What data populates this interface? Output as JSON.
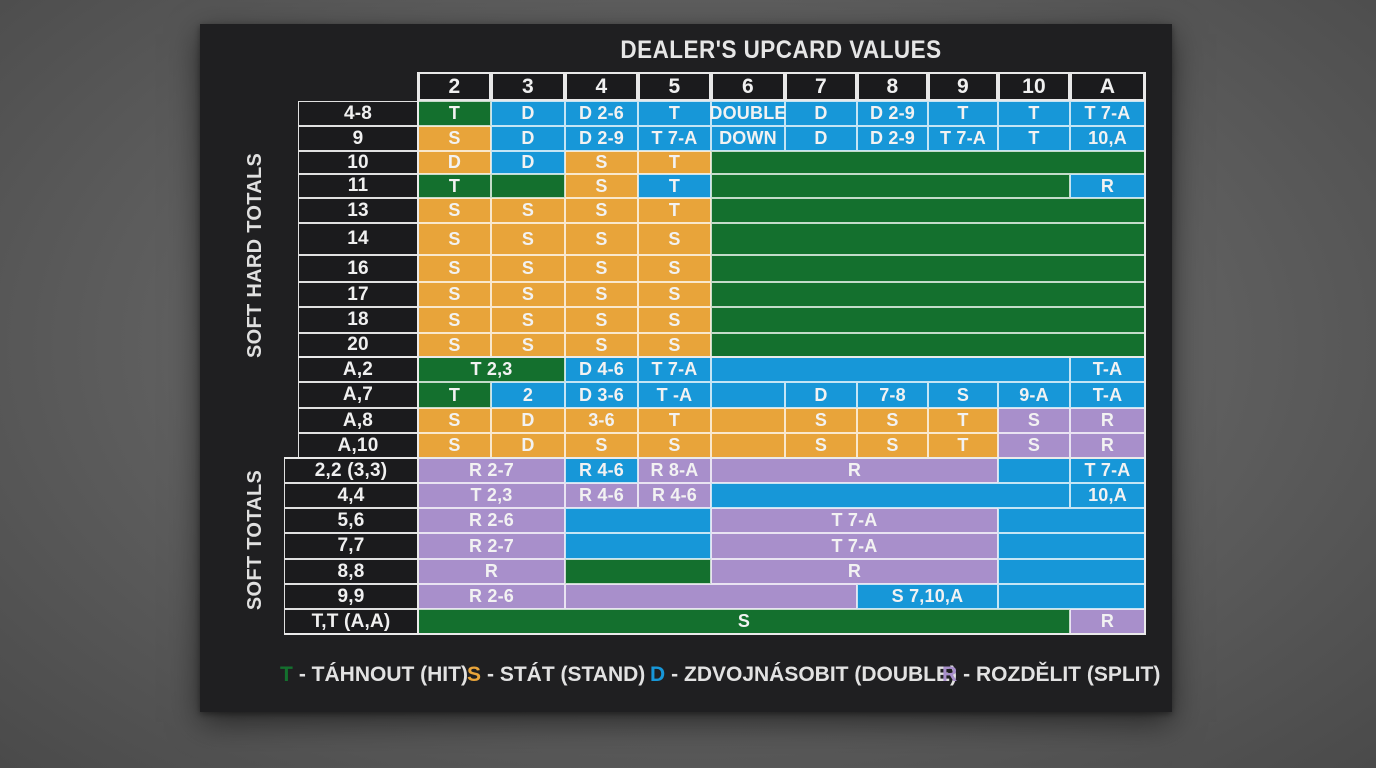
{
  "title": "DEALER'S UPCARD VALUES",
  "side_labels": {
    "upper": "SOFT HARD TOTALS",
    "lower": "SOFT TOTALS"
  },
  "colors": {
    "T": "#14702e",
    "S": "#e8a43a",
    "D": "#1797d8",
    "R": "#a88fcb",
    "board": "#1f1f21"
  },
  "columns": [
    "2",
    "3",
    "4",
    "5",
    "6",
    "7",
    "8",
    "9",
    "10",
    "A"
  ],
  "sections": [
    {
      "name": "hard",
      "rows": [
        {
          "label": "4-8",
          "cells": [
            {
              "span": 1,
              "color": "G",
              "text": "T"
            },
            {
              "span": 1,
              "color": "B",
              "text": "D"
            },
            {
              "span": 1,
              "color": "B",
              "text": "D 2-6"
            },
            {
              "span": 1,
              "color": "B",
              "text": "T"
            },
            {
              "span": 1,
              "color": "B",
              "text": "DOUBLE"
            },
            {
              "span": 1,
              "color": "B",
              "text": "D"
            },
            {
              "span": 1,
              "color": "B",
              "text": "D 2-9"
            },
            {
              "span": 1,
              "color": "B",
              "text": "T"
            },
            {
              "span": 1,
              "color": "B",
              "text": "T"
            },
            {
              "span": 1,
              "color": "B",
              "text": "T 7-A"
            }
          ]
        },
        {
          "label": "9",
          "cells": [
            {
              "span": 1,
              "color": "O",
              "text": "S"
            },
            {
              "span": 1,
              "color": "B",
              "text": "D"
            },
            {
              "span": 1,
              "color": "B",
              "text": "D 2-9"
            },
            {
              "span": 1,
              "color": "B",
              "text": "T 7-A"
            },
            {
              "span": 1,
              "color": "B",
              "text": "DOWN"
            },
            {
              "span": 1,
              "color": "B",
              "text": "D"
            },
            {
              "span": 1,
              "color": "B",
              "text": "D 2-9"
            },
            {
              "span": 1,
              "color": "B",
              "text": "T 7-A"
            },
            {
              "span": 1,
              "color": "B",
              "text": "T"
            },
            {
              "span": 1,
              "color": "B",
              "text": "10,A"
            }
          ]
        },
        {
          "label": "10",
          "cells": [
            {
              "span": 1,
              "color": "O",
              "text": "D"
            },
            {
              "span": 1,
              "color": "B",
              "text": "D"
            },
            {
              "span": 1,
              "color": "O",
              "text": "S"
            },
            {
              "span": 1,
              "color": "O",
              "text": "T"
            },
            {
              "span": 6,
              "color": "G",
              "text": ""
            }
          ]
        },
        {
          "label": "11",
          "cells": [
            {
              "span": 1,
              "color": "G",
              "text": "T"
            },
            {
              "span": 1,
              "color": "G",
              "text": ""
            },
            {
              "span": 1,
              "color": "O",
              "text": "S"
            },
            {
              "span": 1,
              "color": "B",
              "text": "T"
            },
            {
              "span": 5,
              "color": "G",
              "text": ""
            },
            {
              "span": 1,
              "color": "B",
              "text": "R"
            }
          ]
        },
        {
          "label": "13",
          "cells": [
            {
              "span": 1,
              "color": "O",
              "text": "S"
            },
            {
              "span": 1,
              "color": "O",
              "text": "S"
            },
            {
              "span": 1,
              "color": "O",
              "text": "S"
            },
            {
              "span": 1,
              "color": "O",
              "text": "T"
            },
            {
              "span": 6,
              "color": "G",
              "text": ""
            }
          ]
        },
        {
          "label": "14",
          "cells": [
            {
              "span": 1,
              "color": "O",
              "text": "S"
            },
            {
              "span": 1,
              "color": "O",
              "text": "S"
            },
            {
              "span": 1,
              "color": "O",
              "text": "S"
            },
            {
              "span": 1,
              "color": "O",
              "text": "S"
            },
            {
              "span": 6,
              "color": "G",
              "text": ""
            }
          ]
        },
        {
          "label": "16",
          "cells": [
            {
              "span": 1,
              "color": "O",
              "text": "S"
            },
            {
              "span": 1,
              "color": "O",
              "text": "S"
            },
            {
              "span": 1,
              "color": "O",
              "text": "S"
            },
            {
              "span": 1,
              "color": "O",
              "text": "S"
            },
            {
              "span": 6,
              "color": "G",
              "text": ""
            }
          ]
        },
        {
          "label": "17",
          "cells": [
            {
              "span": 1,
              "color": "O",
              "text": "S"
            },
            {
              "span": 1,
              "color": "O",
              "text": "S"
            },
            {
              "span": 1,
              "color": "O",
              "text": "S"
            },
            {
              "span": 1,
              "color": "O",
              "text": "S"
            },
            {
              "span": 6,
              "color": "G",
              "text": ""
            }
          ]
        },
        {
          "label": "18",
          "cells": [
            {
              "span": 1,
              "color": "O",
              "text": "S"
            },
            {
              "span": 1,
              "color": "O",
              "text": "S"
            },
            {
              "span": 1,
              "color": "O",
              "text": "S"
            },
            {
              "span": 1,
              "color": "O",
              "text": "S"
            },
            {
              "span": 6,
              "color": "G",
              "text": ""
            }
          ]
        },
        {
          "label": "20",
          "cells": [
            {
              "span": 1,
              "color": "O",
              "text": "S"
            },
            {
              "span": 1,
              "color": "O",
              "text": "S"
            },
            {
              "span": 1,
              "color": "O",
              "text": "S"
            },
            {
              "span": 1,
              "color": "O",
              "text": "S"
            },
            {
              "span": 6,
              "color": "G",
              "text": ""
            }
          ]
        }
      ]
    },
    {
      "name": "soft",
      "rows": [
        {
          "label": "A,2",
          "cells": [
            {
              "span": 2,
              "color": "G",
              "text": "T 2,3"
            },
            {
              "span": 1,
              "color": "B",
              "text": "D 4-6"
            },
            {
              "span": 1,
              "color": "B",
              "text": "T 7-A"
            },
            {
              "span": 5,
              "color": "B",
              "text": ""
            },
            {
              "span": 1,
              "color": "B",
              "text": "T-A"
            }
          ]
        },
        {
          "label": "A,7",
          "cells": [
            {
              "span": 1,
              "color": "G",
              "text": "T"
            },
            {
              "span": 1,
              "color": "B",
              "text": "2"
            },
            {
              "span": 1,
              "color": "B",
              "text": "D 3-6"
            },
            {
              "span": 1,
              "color": "B",
              "text": "T -A"
            },
            {
              "span": 1,
              "color": "B",
              "text": ""
            },
            {
              "span": 1,
              "color": "B",
              "text": "D"
            },
            {
              "span": 1,
              "color": "B",
              "text": "7-8"
            },
            {
              "span": 1,
              "color": "B",
              "text": "S"
            },
            {
              "span": 1,
              "color": "B",
              "text": "9-A"
            },
            {
              "span": 1,
              "color": "B",
              "text": "T-A"
            }
          ]
        },
        {
          "label": "A,8",
          "cells": [
            {
              "span": 1,
              "color": "O",
              "text": "S"
            },
            {
              "span": 1,
              "color": "O",
              "text": "D"
            },
            {
              "span": 1,
              "color": "O",
              "text": "3-6"
            },
            {
              "span": 1,
              "color": "O",
              "text": "T"
            },
            {
              "span": 1,
              "color": "O",
              "text": ""
            },
            {
              "span": 1,
              "color": "O",
              "text": "S"
            },
            {
              "span": 1,
              "color": "O",
              "text": "S"
            },
            {
              "span": 1,
              "color": "O",
              "text": "T"
            },
            {
              "span": 1,
              "color": "P",
              "text": "S"
            },
            {
              "span": 1,
              "color": "P",
              "text": "R"
            }
          ]
        },
        {
          "label": "A,10",
          "cells": [
            {
              "span": 1,
              "color": "O",
              "text": "S"
            },
            {
              "span": 1,
              "color": "O",
              "text": "D"
            },
            {
              "span": 1,
              "color": "O",
              "text": "S"
            },
            {
              "span": 1,
              "color": "O",
              "text": "S"
            },
            {
              "span": 1,
              "color": "O",
              "text": ""
            },
            {
              "span": 1,
              "color": "O",
              "text": "S"
            },
            {
              "span": 1,
              "color": "O",
              "text": "S"
            },
            {
              "span": 1,
              "color": "O",
              "text": "T"
            },
            {
              "span": 1,
              "color": "P",
              "text": "S"
            },
            {
              "span": 1,
              "color": "P",
              "text": "R"
            }
          ]
        }
      ]
    },
    {
      "name": "pairs",
      "rows": [
        {
          "label": "2,2 (3,3)",
          "cells": [
            {
              "span": 2,
              "color": "P",
              "text": "R 2-7"
            },
            {
              "span": 1,
              "color": "B",
              "text": "R 4-6"
            },
            {
              "span": 1,
              "color": "P",
              "text": "R 8-A"
            },
            {
              "span": 4,
              "color": "P",
              "text": "R"
            },
            {
              "span": 1,
              "color": "B",
              "text": ""
            },
            {
              "span": 1,
              "color": "B",
              "text": "T 7-A"
            }
          ]
        },
        {
          "label": "4,4",
          "cells": [
            {
              "span": 2,
              "color": "P",
              "text": "T 2,3"
            },
            {
              "span": 1,
              "color": "P",
              "text": "R 4-6"
            },
            {
              "span": 1,
              "color": "P",
              "text": "R 4-6"
            },
            {
              "span": 5,
              "color": "B",
              "text": ""
            },
            {
              "span": 1,
              "color": "B",
              "text": "10,A"
            }
          ]
        },
        {
          "label": "5,6",
          "cells": [
            {
              "span": 2,
              "color": "P",
              "text": "R 2-6"
            },
            {
              "span": 2,
              "color": "B",
              "text": ""
            },
            {
              "span": 4,
              "color": "P",
              "text": "T 7-A"
            },
            {
              "span": 2,
              "color": "B",
              "text": ""
            }
          ]
        },
        {
          "label": "7,7",
          "cells": [
            {
              "span": 2,
              "color": "P",
              "text": "R 2-7"
            },
            {
              "span": 2,
              "color": "B",
              "text": ""
            },
            {
              "span": 4,
              "color": "P",
              "text": "T 7-A"
            },
            {
              "span": 2,
              "color": "B",
              "text": ""
            }
          ]
        },
        {
          "label": "8,8",
          "cells": [
            {
              "span": 2,
              "color": "P",
              "text": "R"
            },
            {
              "span": 2,
              "color": "G",
              "text": ""
            },
            {
              "span": 4,
              "color": "P",
              "text": "R"
            },
            {
              "span": 2,
              "color": "B",
              "text": ""
            }
          ]
        },
        {
          "label": "9,9",
          "cells": [
            {
              "span": 2,
              "color": "P",
              "text": "R 2-6"
            },
            {
              "span": 4,
              "color": "P",
              "text": ""
            },
            {
              "span": 2,
              "color": "B",
              "text": "S 7,10,A"
            },
            {
              "span": 2,
              "color": "B",
              "text": ""
            }
          ]
        },
        {
          "label": "T,T (A,A)",
          "cells": [
            {
              "span": 9,
              "color": "G",
              "text": "S"
            },
            {
              "span": 1,
              "color": "P",
              "text": "R"
            }
          ]
        }
      ]
    }
  ],
  "legend": [
    {
      "symbol": "T",
      "text": "- TÁHNOUT (HIT)",
      "color": "#14702e"
    },
    {
      "symbol": "S",
      "text": "- STÁT (STAND)",
      "color": "#e8a43a"
    },
    {
      "symbol": "D",
      "text": "- ZDVOJNÁSOBIT (DOUBLE)",
      "color": "#1797d8"
    },
    {
      "symbol": "R",
      "text": "- ROZDĚLIT (SPLIT)",
      "color": "#a88fcb"
    }
  ]
}
